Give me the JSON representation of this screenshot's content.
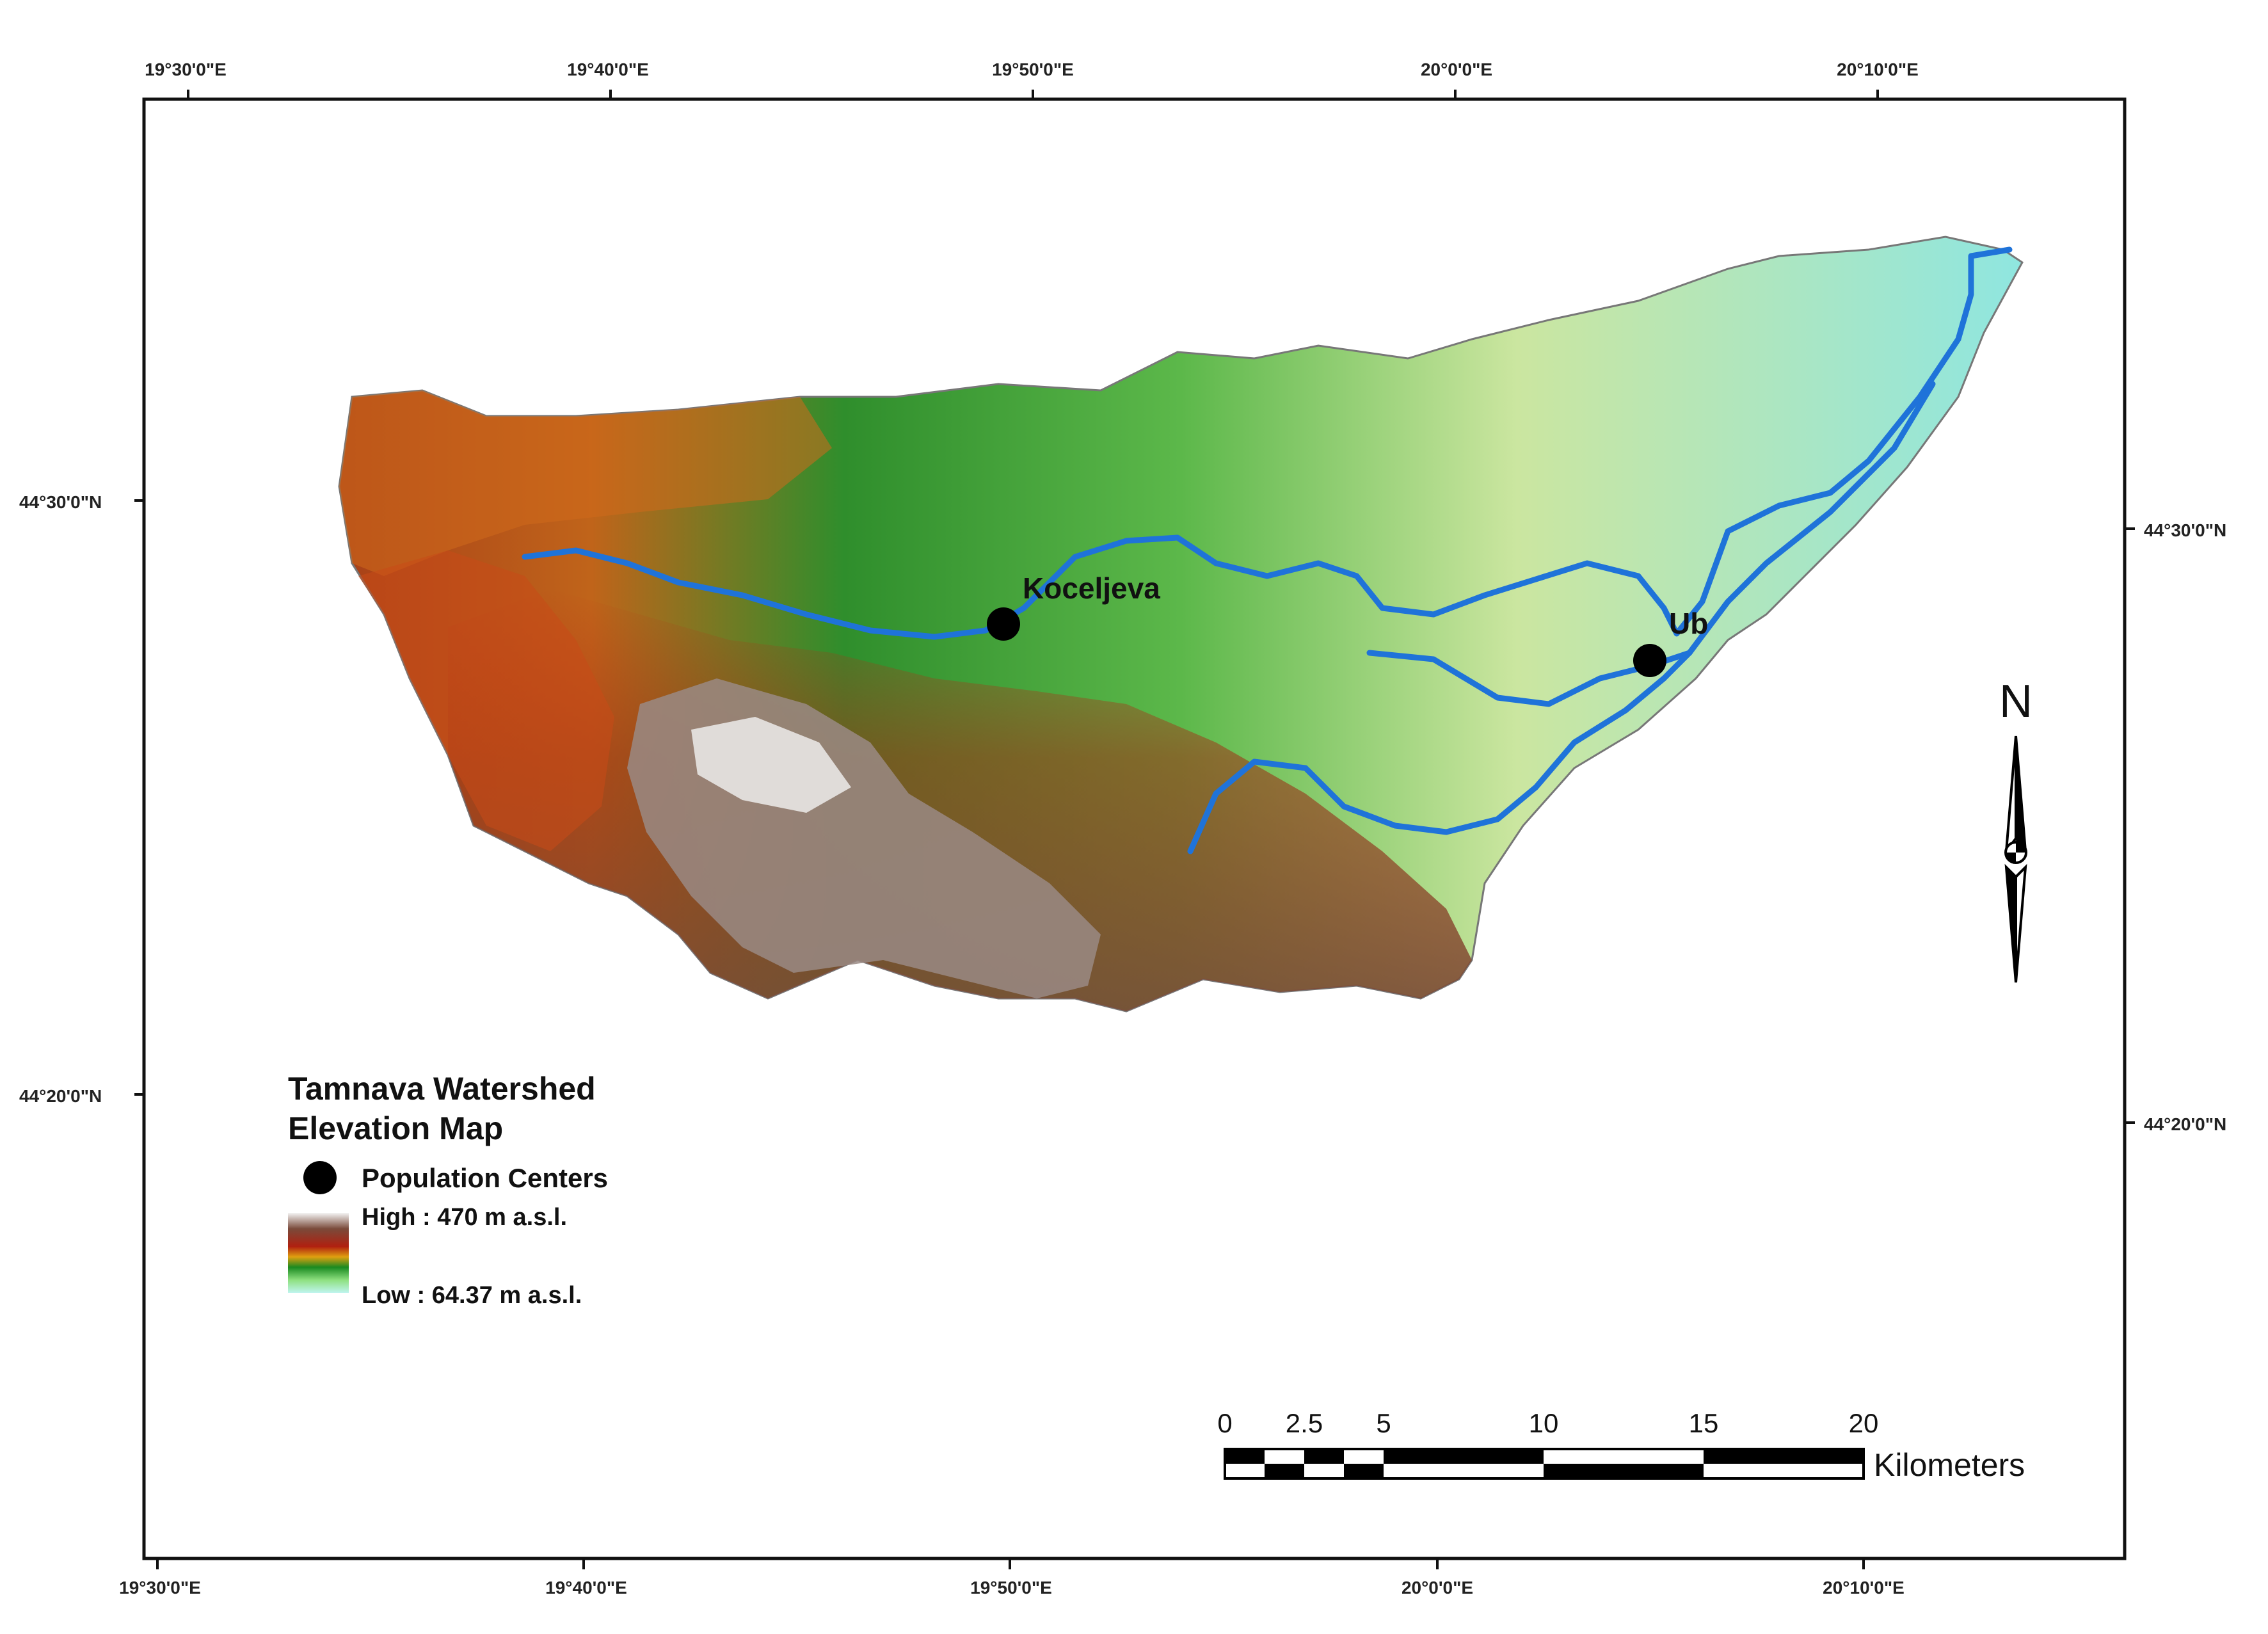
{
  "map": {
    "title_line1": "Tamnava Watershed",
    "title_line2": "Elevation Map",
    "grid_labels": {
      "top": [
        "19°30'0\"E",
        "19°40'0\"E",
        "19°50'0\"E",
        "20°0'0\"E",
        "20°10'0\"E"
      ],
      "bottom": [
        "19°30'0\"E",
        "19°40'0\"E",
        "19°50'0\"E",
        "20°0'0\"E",
        "20°10'0\"E"
      ],
      "left": [
        "44°30'0\"N",
        "44°20'0\"N"
      ],
      "right": [
        "44°30'0\"N",
        "44°20'0\"N"
      ]
    },
    "places": [
      {
        "name": "Koceljeva"
      },
      {
        "name": "Ub"
      }
    ],
    "legend": {
      "population_centers": "Population Centers",
      "high_label": "High : 470 m a.s.l.",
      "low_label": "Low : 64.37 m a.s.l.",
      "elevation_max_m": 470,
      "elevation_min_m": 64.37
    },
    "scale_bar": {
      "ticks": [
        "0",
        "2.5",
        "5",
        "10",
        "15",
        "20"
      ],
      "unit": "Kilometers"
    },
    "north_arrow": {
      "letter": "N"
    },
    "colors": {
      "river": "#1f73d9",
      "high": "#ffffff",
      "brown": "#8b4a2f",
      "red": "#b22418",
      "orange": "#e8a020",
      "green": "#2f9a2e",
      "light_green": "#bde8a0",
      "low": "#8fe8e0"
    }
  }
}
